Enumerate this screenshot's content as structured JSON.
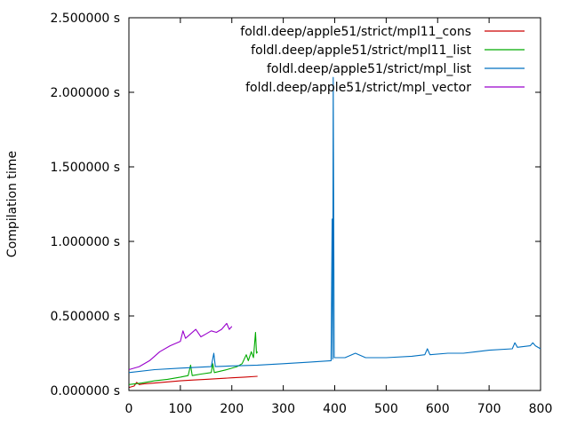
{
  "chart_data": {
    "type": "line",
    "title": "",
    "xlabel": "",
    "ylabel": "Compilation time",
    "xlim": [
      0,
      800
    ],
    "ylim": [
      0,
      2.5
    ],
    "x_ticks": [
      0,
      100,
      200,
      300,
      400,
      500,
      600,
      700,
      800
    ],
    "y_ticks": [
      0,
      0.5,
      1.0,
      1.5,
      2.0,
      2.5
    ],
    "y_tick_labels": [
      "0.000000 s",
      "0.500000 s",
      "1.000000 s",
      "1.500000 s",
      "2.000000 s",
      "2.500000 s"
    ],
    "grid": false,
    "legend_position": "top-right",
    "series": [
      {
        "name": "foldl.deep/apple51/strict/mpl11_cons",
        "color": "#cc0000",
        "points": [
          [
            0,
            0.02
          ],
          [
            10,
            0.03
          ],
          [
            15,
            0.055
          ],
          [
            20,
            0.04
          ],
          [
            30,
            0.045
          ],
          [
            50,
            0.05
          ],
          [
            75,
            0.058
          ],
          [
            100,
            0.065
          ],
          [
            125,
            0.07
          ],
          [
            150,
            0.075
          ],
          [
            175,
            0.08
          ],
          [
            200,
            0.085
          ],
          [
            225,
            0.09
          ],
          [
            250,
            0.095
          ]
        ]
      },
      {
        "name": "foldl.deep/apple51/strict/mpl11_list",
        "color": "#00aa00",
        "points": [
          [
            0,
            0.04
          ],
          [
            25,
            0.05
          ],
          [
            50,
            0.065
          ],
          [
            75,
            0.075
          ],
          [
            100,
            0.09
          ],
          [
            115,
            0.1
          ],
          [
            120,
            0.17
          ],
          [
            123,
            0.1
          ],
          [
            140,
            0.11
          ],
          [
            160,
            0.12
          ],
          [
            163,
            0.18
          ],
          [
            166,
            0.12
          ],
          [
            190,
            0.14
          ],
          [
            210,
            0.16
          ],
          [
            220,
            0.18
          ],
          [
            228,
            0.24
          ],
          [
            232,
            0.2
          ],
          [
            238,
            0.26
          ],
          [
            242,
            0.22
          ],
          [
            246,
            0.39
          ],
          [
            248,
            0.25
          ],
          [
            250,
            0.26
          ]
        ]
      },
      {
        "name": "foldl.deep/apple51/strict/mpl_list",
        "color": "#0070c0",
        "points": [
          [
            0,
            0.12
          ],
          [
            50,
            0.14
          ],
          [
            100,
            0.15
          ],
          [
            160,
            0.16
          ],
          [
            165,
            0.25
          ],
          [
            168,
            0.16
          ],
          [
            200,
            0.165
          ],
          [
            250,
            0.17
          ],
          [
            300,
            0.18
          ],
          [
            350,
            0.19
          ],
          [
            393,
            0.2
          ],
          [
            395,
            1.15
          ],
          [
            396,
            0.21
          ],
          [
            397,
            2.1
          ],
          [
            399,
            0.22
          ],
          [
            420,
            0.22
          ],
          [
            440,
            0.25
          ],
          [
            460,
            0.22
          ],
          [
            500,
            0.22
          ],
          [
            550,
            0.23
          ],
          [
            575,
            0.24
          ],
          [
            580,
            0.28
          ],
          [
            585,
            0.24
          ],
          [
            620,
            0.25
          ],
          [
            650,
            0.25
          ],
          [
            675,
            0.26
          ],
          [
            700,
            0.27
          ],
          [
            745,
            0.28
          ],
          [
            750,
            0.32
          ],
          [
            755,
            0.29
          ],
          [
            780,
            0.3
          ],
          [
            785,
            0.32
          ],
          [
            790,
            0.3
          ],
          [
            800,
            0.28
          ]
        ]
      },
      {
        "name": "foldl.deep/apple51/strict/mpl_vector",
        "color": "#9900cc",
        "points": [
          [
            0,
            0.14
          ],
          [
            20,
            0.16
          ],
          [
            40,
            0.2
          ],
          [
            60,
            0.26
          ],
          [
            80,
            0.3
          ],
          [
            100,
            0.33
          ],
          [
            105,
            0.4
          ],
          [
            110,
            0.35
          ],
          [
            120,
            0.38
          ],
          [
            130,
            0.41
          ],
          [
            140,
            0.36
          ],
          [
            150,
            0.38
          ],
          [
            160,
            0.4
          ],
          [
            170,
            0.39
          ],
          [
            180,
            0.41
          ],
          [
            190,
            0.45
          ],
          [
            195,
            0.41
          ],
          [
            200,
            0.43
          ]
        ]
      }
    ]
  }
}
